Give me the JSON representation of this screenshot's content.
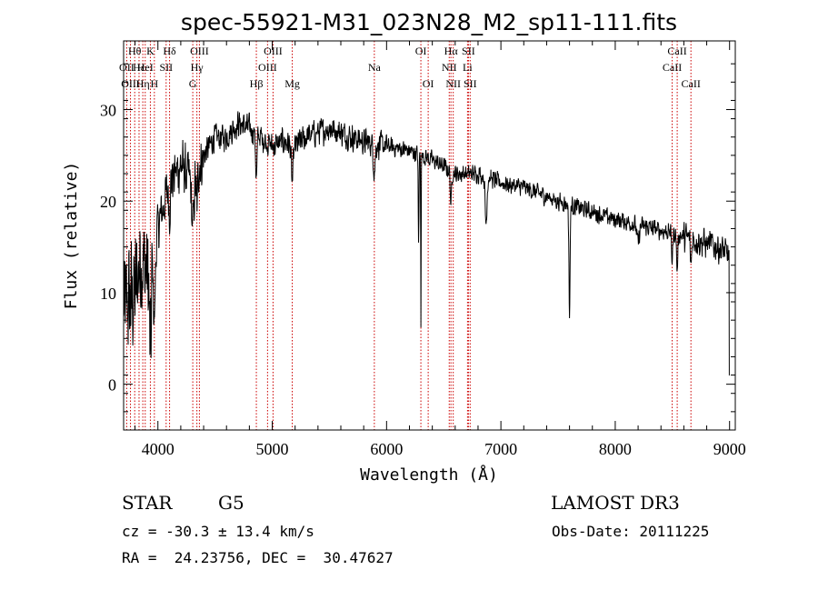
{
  "chart_data": {
    "type": "line",
    "title": "spec-55921-M31_023N28_M2_sp11-111.fits",
    "xlabel": "Wavelength (Å)",
    "ylabel": "Flux (relative)",
    "xlim": [
      3700,
      9050
    ],
    "ylim": [
      -5,
      37.5
    ],
    "xticks": [
      4000,
      5000,
      6000,
      7000,
      8000,
      9000
    ],
    "yticks": [
      0,
      10,
      20,
      30
    ],
    "colors": {
      "spectrum": "#000000",
      "line_marker": "#cc0000",
      "axis": "#000000"
    },
    "lines": [
      {
        "label": "Hθ",
        "wave": 3797,
        "row": 0
      },
      {
        "label": "K",
        "wave": 3934,
        "row": 0
      },
      {
        "label": "Hδ",
        "wave": 4102,
        "row": 0
      },
      {
        "label": "OIII",
        "wave": 4363,
        "row": 0
      },
      {
        "label": "OIII",
        "wave": 5007,
        "row": 0
      },
      {
        "label": "OI",
        "wave": 6300,
        "row": 0
      },
      {
        "label": "Hα",
        "wave": 6563,
        "row": 0
      },
      {
        "label": "SII",
        "wave": 6716,
        "row": 0
      },
      {
        "label": "CaII",
        "wave": 8542,
        "row": 0
      },
      {
        "label": "OII",
        "wave": 3727,
        "row": 1
      },
      {
        "label": "Hε",
        "wave": 3835,
        "row": 1
      },
      {
        "label": "HeI",
        "wave": 3889,
        "row": 1
      },
      {
        "label": "SII",
        "wave": 4072,
        "row": 1
      },
      {
        "label": "Hγ",
        "wave": 4341,
        "row": 1
      },
      {
        "label": "OIII",
        "wave": 4959,
        "row": 1
      },
      {
        "label": "Na",
        "wave": 5893,
        "row": 1
      },
      {
        "label": "NII",
        "wave": 6548,
        "row": 1
      },
      {
        "label": "Li",
        "wave": 6708,
        "row": 1
      },
      {
        "label": "CaII",
        "wave": 8498,
        "row": 1
      },
      {
        "label": "OIII",
        "wave": 3760,
        "row": 2
      },
      {
        "label": "Hη",
        "wave": 3868,
        "row": 2
      },
      {
        "label": "H",
        "wave": 3969,
        "row": 2
      },
      {
        "label": "G",
        "wave": 4305,
        "row": 2
      },
      {
        "label": "Hβ",
        "wave": 4861,
        "row": 2
      },
      {
        "label": "Mg",
        "wave": 5175,
        "row": 2
      },
      {
        "label": "OI",
        "wave": 6364,
        "row": 2
      },
      {
        "label": "NII",
        "wave": 6583,
        "row": 2
      },
      {
        "label": "SII",
        "wave": 6731,
        "row": 2
      },
      {
        "label": "CaII",
        "wave": 8662,
        "row": 2
      }
    ],
    "continuum_knots": [
      [
        3700,
        8
      ],
      [
        3800,
        10
      ],
      [
        3850,
        14
      ],
      [
        3920,
        12
      ],
      [
        3970,
        15
      ],
      [
        4000,
        17
      ],
      [
        4100,
        22
      ],
      [
        4200,
        24
      ],
      [
        4300,
        22
      ],
      [
        4400,
        25
      ],
      [
        4500,
        27
      ],
      [
        4600,
        27
      ],
      [
        4700,
        28.5
      ],
      [
        4800,
        28
      ],
      [
        4900,
        27
      ],
      [
        5000,
        26
      ],
      [
        5100,
        26.5
      ],
      [
        5200,
        26
      ],
      [
        5300,
        27
      ],
      [
        5400,
        27.5
      ],
      [
        5500,
        28
      ],
      [
        5600,
        27.5
      ],
      [
        5700,
        27
      ],
      [
        5800,
        26.5
      ],
      [
        6000,
        26
      ],
      [
        6200,
        25.5
      ],
      [
        6400,
        24.5
      ],
      [
        6600,
        23
      ],
      [
        6800,
        23
      ],
      [
        7000,
        22
      ],
      [
        7200,
        21.5
      ],
      [
        7500,
        20
      ],
      [
        8000,
        18
      ],
      [
        8500,
        16.5
      ],
      [
        8900,
        15
      ],
      [
        9000,
        14
      ]
    ],
    "absorption_features": [
      {
        "wave": 3934,
        "depth": 10,
        "width": 8
      },
      {
        "wave": 3969,
        "depth": 8,
        "width": 8
      },
      {
        "wave": 4102,
        "depth": 3,
        "width": 6
      },
      {
        "wave": 4305,
        "depth": 5,
        "width": 10
      },
      {
        "wave": 4341,
        "depth": 4,
        "width": 6
      },
      {
        "wave": 4861,
        "depth": 5,
        "width": 6
      },
      {
        "wave": 5175,
        "depth": 4,
        "width": 8
      },
      {
        "wave": 5893,
        "depth": 3,
        "width": 8
      },
      {
        "wave": 6280,
        "depth": 10,
        "width": 3
      },
      {
        "wave": 6300,
        "depth": 18,
        "width": 2
      },
      {
        "wave": 6563,
        "depth": 4,
        "width": 5
      },
      {
        "wave": 6870,
        "depth": 5,
        "width": 8
      },
      {
        "wave": 7600,
        "depth": 12,
        "width": 5
      },
      {
        "wave": 8200,
        "depth": 2,
        "width": 10
      },
      {
        "wave": 8498,
        "depth": 3,
        "width": 5
      },
      {
        "wave": 8542,
        "depth": 4,
        "width": 5
      },
      {
        "wave": 8662,
        "depth": 3,
        "width": 5
      }
    ],
    "noise": [
      {
        "from": 3700,
        "to": 3950,
        "amp": 8
      },
      {
        "from": 3950,
        "to": 4400,
        "amp": 3.5
      },
      {
        "from": 4400,
        "to": 6000,
        "amp": 1.8
      },
      {
        "from": 6000,
        "to": 8600,
        "amp": 1.2
      },
      {
        "from": 8600,
        "to": 9000,
        "amp": 2
      }
    ]
  },
  "info": {
    "object_class": "STAR",
    "subclass": "G5",
    "survey": "LAMOST DR3",
    "redshift_line": "cz = -30.3 ± 13.4 km/s",
    "obs_date": "Obs-Date: 20111225",
    "coords": "RA =  24.23756, DEC =  30.47627"
  }
}
